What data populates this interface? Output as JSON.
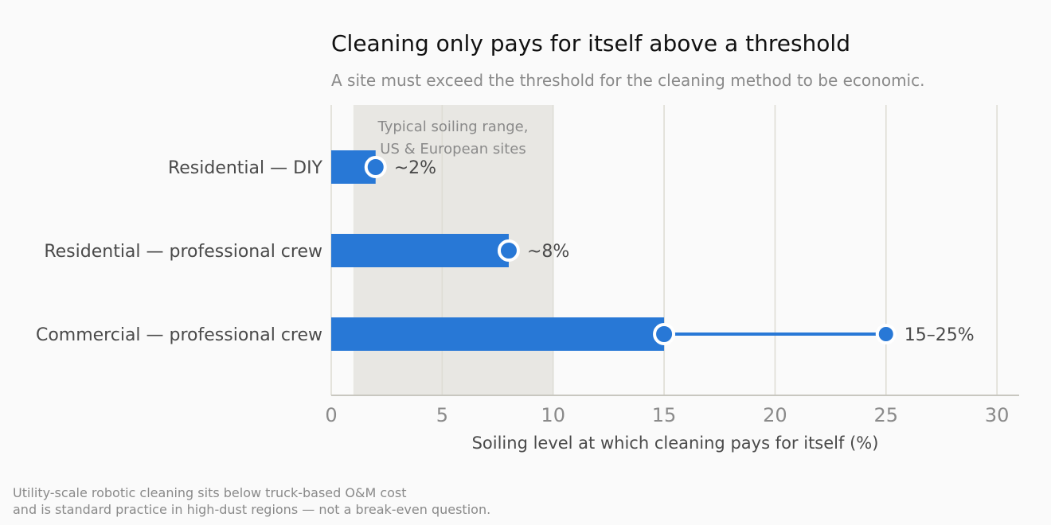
{
  "chart_data": {
    "type": "bar",
    "title": "Cleaning only pays for itself above a threshold",
    "subtitle": "A site must exceed the threshold for the cleaning method to be economic.",
    "xlabel": "Soiling level at which cleaning pays for itself (%)",
    "ylabel": "",
    "xlim": [
      0,
      31
    ],
    "xticks": [
      0,
      5,
      10,
      15,
      20,
      25,
      30
    ],
    "xtick_labels": [
      "0",
      "5",
      "10",
      "15",
      "20",
      "25",
      "30"
    ],
    "grid": "vertical",
    "categories": [
      "Residential — DIY",
      "Residential — professional crew",
      "Commercial — professional crew"
    ],
    "values": [
      2,
      8,
      15
    ],
    "range_end": [
      null,
      null,
      25
    ],
    "value_labels": [
      "~2%",
      "~8%",
      "15–25%"
    ],
    "shaded_band": {
      "x_start": 1,
      "x_end": 10,
      "label_line1": "Typical soiling range,",
      "label_line2": "US & European sites"
    },
    "footnote_line1": "Utility-scale robotic cleaning sits below truck-based O&M cost",
    "footnote_line2": "and is standard practice in high-dust regions — not a break-even question.",
    "colors": {
      "bar": "#2878d6",
      "band": "#e8e7e3",
      "grid": "#deddd5",
      "axis": "#c8c7c0",
      "title": "#111111",
      "subtitle": "#8a8a8a",
      "text": "#4a4a4a",
      "tick": "#8a8a8a",
      "background": "#fafafa"
    }
  }
}
